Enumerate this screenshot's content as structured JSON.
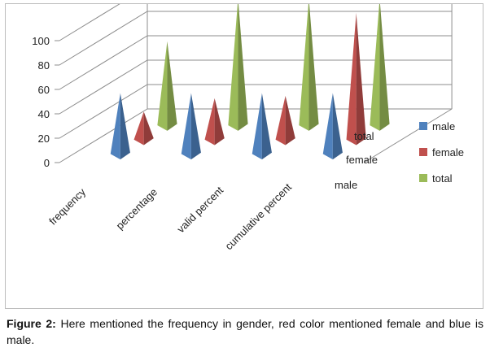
{
  "chart_data": {
    "type": "3d-pyramid-bar",
    "categories": [
      "frequency",
      "percentage",
      "valid percent",
      "cumulative percent"
    ],
    "series": [
      {
        "name": "male",
        "values": [
          46,
          46,
          46,
          46
        ]
      },
      {
        "name": "female",
        "values": [
          19,
          30,
          32,
          100
        ]
      },
      {
        "name": "total",
        "values": [
          65,
          100,
          100,
          100
        ]
      }
    ],
    "y_ticks": [
      "0",
      "20",
      "40",
      "60",
      "80",
      "100"
    ],
    "ylim": [
      0,
      100
    ],
    "depth_labels": [
      "male",
      "female",
      "total"
    ],
    "legend": [
      {
        "label": "male",
        "color": "#4f81bd"
      },
      {
        "label": "female",
        "color": "#c0504d"
      },
      {
        "label": "total",
        "color": "#9bbb59"
      }
    ],
    "legend_position": "right",
    "grid": true
  },
  "caption": {
    "label": "Figure 2:",
    "text": " Here mentioned the frequency in gender, red color mentioned female and blue is male."
  },
  "colors": {
    "male": "#4f81bd",
    "female": "#c0504d",
    "total": "#9bbb59"
  }
}
